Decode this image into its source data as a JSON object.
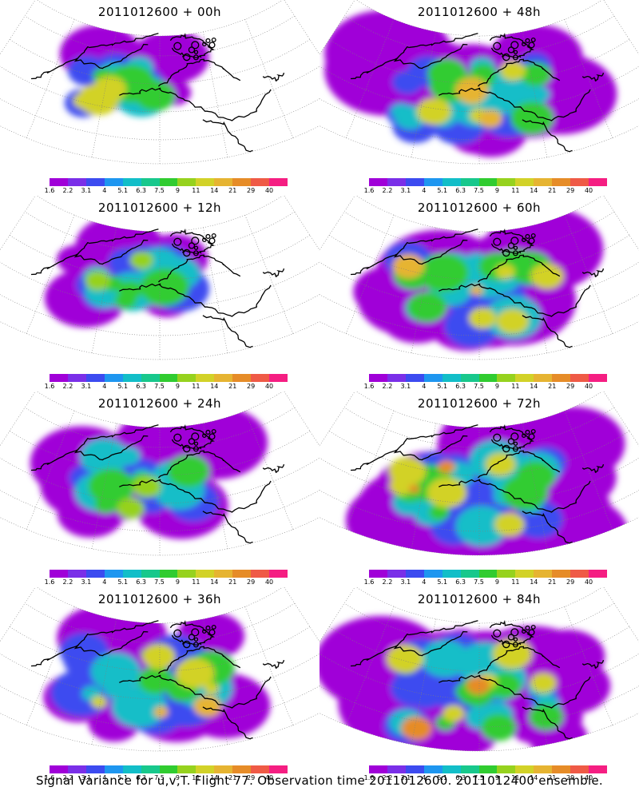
{
  "caption": "Signal Variance for u,v,T. Flight 77. Observation time 2011012600. 2011012400 ensemble.",
  "panels": [
    {
      "title": "2011012600 + 00h",
      "spread": 0.15,
      "peak": 11
    },
    {
      "title": "2011012600 + 12h",
      "spread": 0.35,
      "peak": 9
    },
    {
      "title": "2011012600 + 24h",
      "spread": 0.5,
      "peak": 9
    },
    {
      "title": "2011012600 + 36h",
      "spread": 0.65,
      "peak": 14
    },
    {
      "title": "2011012600 + 48h",
      "spread": 0.7,
      "peak": 14
    },
    {
      "title": "2011012600 + 60h",
      "spread": 0.75,
      "peak": 14
    },
    {
      "title": "2011012600 + 72h",
      "spread": 0.85,
      "peak": 21
    },
    {
      "title": "2011012600 + 84h",
      "spread": 0.95,
      "peak": 21
    }
  ],
  "colorbar": {
    "ticks": [
      "1.6",
      "2.2",
      "3.1",
      "4",
      "5.1",
      "6.3",
      "7.5",
      "9",
      "11",
      "14",
      "21",
      "29",
      "40"
    ],
    "colors": [
      "#a000d8",
      "#7a2fe8",
      "#3c4bf0",
      "#1e96f0",
      "#12bec8",
      "#18c88c",
      "#30cc30",
      "#96d21e",
      "#d2d228",
      "#e6b432",
      "#e68c28",
      "#ef5a46",
      "#f51e82"
    ]
  },
  "line_colors": {
    "coast": "#000000",
    "grid": "#7f7f7f"
  }
}
